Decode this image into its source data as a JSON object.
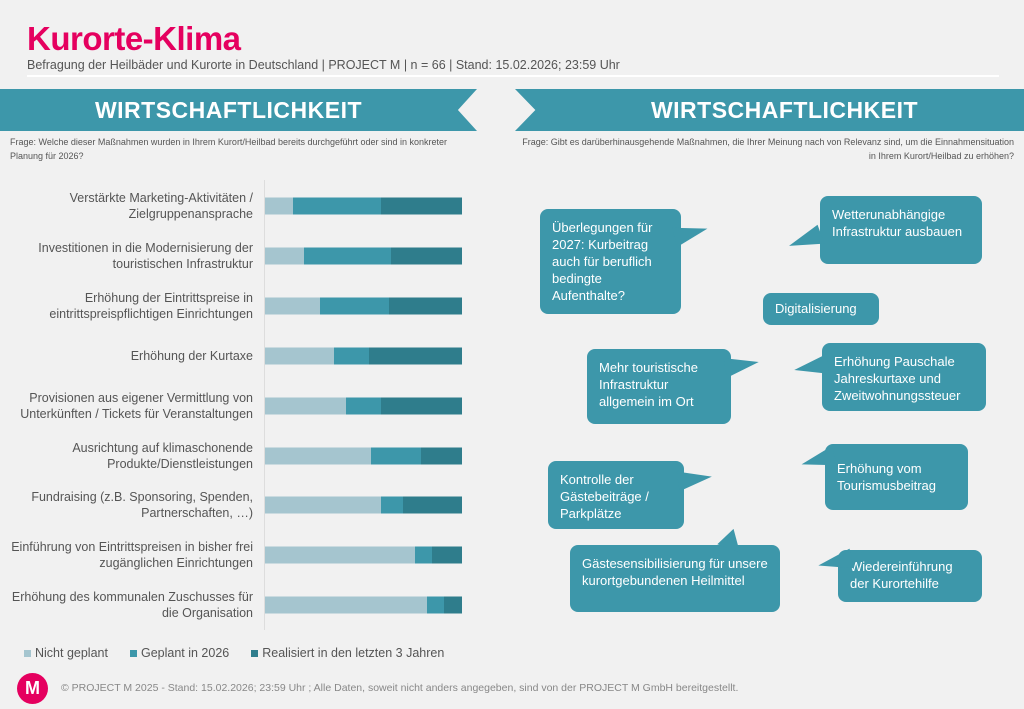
{
  "header": {
    "title": "Kurorte-Klima",
    "subtitle": "Befragung der Heilbäder und Kurorte in Deutschland | PROJECT M | n = 66 | Stand: 15.02.2026; 23:59 Uhr"
  },
  "left_panel": {
    "banner": "WIRTSCHAFTLICHKEIT",
    "question": "Frage: Welche dieser Maßnahmen wurden in Ihrem Kurort/Heilbad bereits durchgeführt oder sind in konkreter Planung für 2026?"
  },
  "right_panel": {
    "banner": "WIRTSCHAFTLICHKEIT",
    "question": "Frage: Gibt es darüberhinausgehende Maßnahmen, die Ihrer Meinung nach von Relevanz sind, um die Einnahmensituation in Ihrem Kurort/Heilbad zu erhöhen?",
    "bubbles": [
      "Überlegungen für 2027: Kurbeitrag auch für beruflich bedingte Aufenthalte?",
      "Wetterunabhängige Infrastruktur ausbauen",
      "Digitalisierung",
      "Mehr touristische Infrastruktur allgemein im Ort",
      "Erhöhung Pauschale Jahreskurtaxe und Zweitwohnungssteuer",
      "Kontrolle der Gästebeiträge / Parkplätze",
      "Erhöhung vom Tourismusbeitrag",
      "Gästesensibilisierung für unsere kurortgebundenen Heilmittel",
      "Wiedereinführung der Kurortehilfe"
    ]
  },
  "chart_data": {
    "type": "bar",
    "orientation": "horizontal",
    "stacked": "100%",
    "categories": [
      "Verstärkte Marketing-Aktivitäten / Zielgruppenansprache",
      "Investitionen in die Modernisierung der touristischen Infrastruktur",
      "Erhöhung der Eintrittspreise in eintrittspreispflichtigen Einrichtungen",
      "Erhöhung der Kurtaxe",
      "Provisionen aus eigener Vermittlung von Unterkünften / Tickets für Veranstaltungen",
      "Ausrichtung auf klimaschonende Produkte/Dienstleistungen",
      "Fundraising (z.B. Sponsoring, Spenden, Partnerschaften, …)",
      "Einführung von Eintrittspreisen in bisher frei zugänglichen Einrichtungen",
      "Erhöhung des kommunalen Zuschusses für die Organisation"
    ],
    "series": [
      {
        "name": "Nicht geplant",
        "color": "#a5c5cf",
        "values": [
          14,
          20,
          28,
          35,
          41,
          54,
          59,
          76,
          82
        ]
      },
      {
        "name": "Geplant in 2026",
        "color": "#3d97aa",
        "values": [
          45,
          44,
          35,
          18,
          18,
          25,
          11,
          9,
          9
        ]
      },
      {
        "name": "Realisiert in den letzten 3 Jahren",
        "color": "#2f7d8c",
        "values": [
          41,
          36,
          37,
          47,
          41,
          21,
          30,
          15,
          9
        ]
      }
    ],
    "xlim": [
      0,
      100
    ],
    "grid": false,
    "legend": "bottom"
  },
  "footer": {
    "logo_letter": "M",
    "text": "© PROJECT M 2025 - Stand: 15.02.2026; 23:59 Uhr ; Alle Daten, soweit nicht anders angegeben, sind von der PROJECT M GmbH bereitgestellt."
  }
}
